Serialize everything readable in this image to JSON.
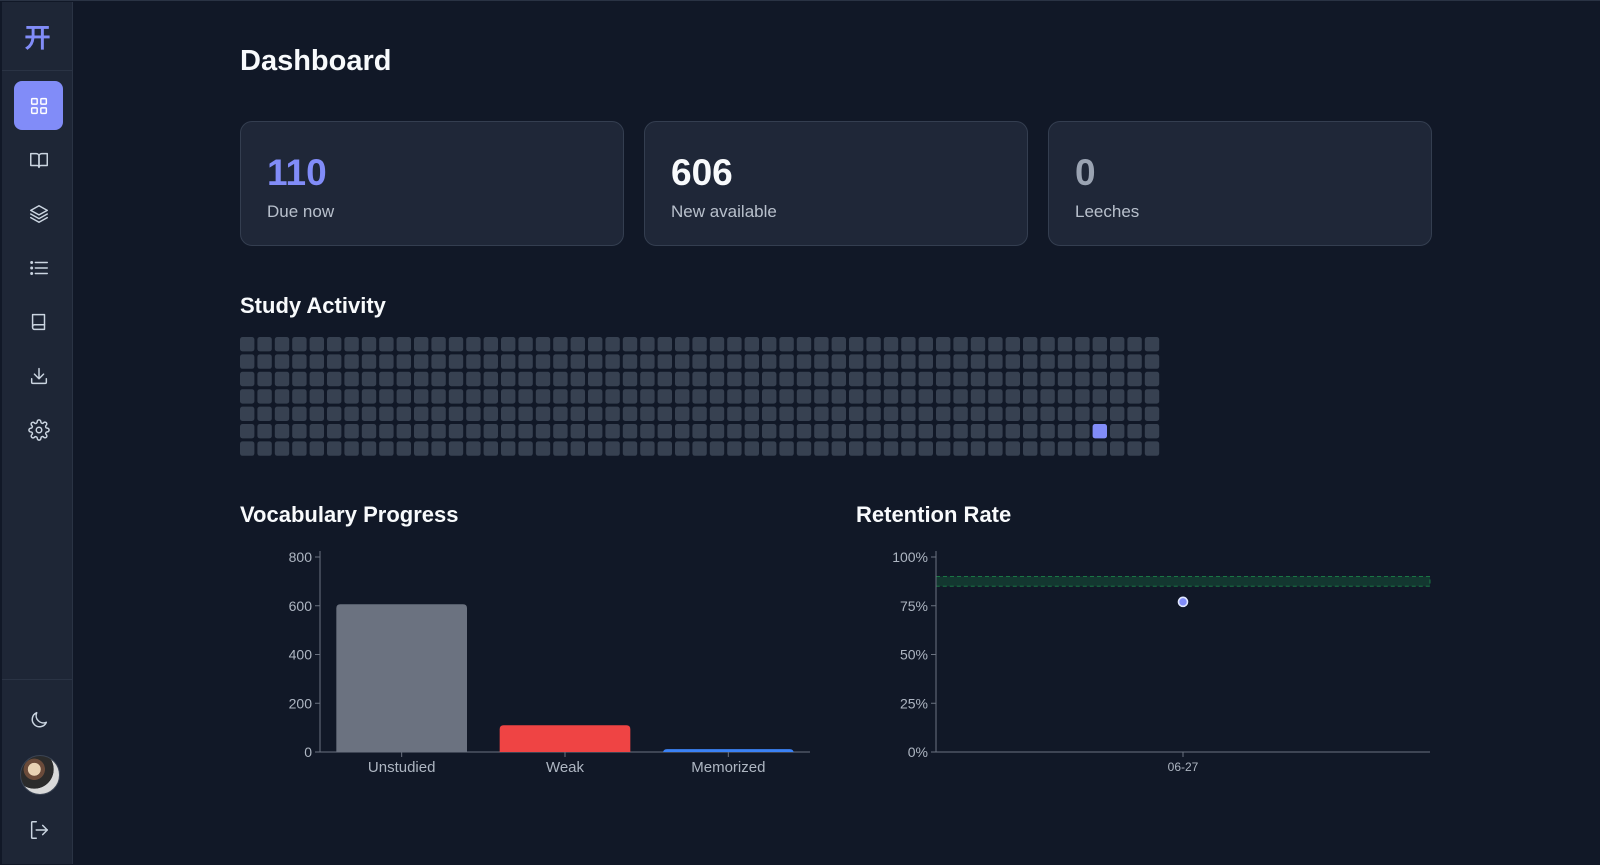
{
  "app": {
    "logo_glyph": "开",
    "accent_color": "#818cf8"
  },
  "sidebar": {
    "nav_items": [
      {
        "icon": "dashboard-grid-icon",
        "active": true
      },
      {
        "icon": "open-book-icon",
        "active": false
      },
      {
        "icon": "layers-icon",
        "active": false
      },
      {
        "icon": "list-icon",
        "active": false
      },
      {
        "icon": "book-icon",
        "active": false
      },
      {
        "icon": "download-icon",
        "active": false
      },
      {
        "icon": "gear-icon",
        "active": false
      }
    ],
    "bottom_items": [
      {
        "icon": "moon-icon"
      },
      {
        "icon": "avatar"
      },
      {
        "icon": "logout-icon"
      }
    ]
  },
  "page": {
    "title": "Dashboard"
  },
  "stats": [
    {
      "value": "110",
      "label": "Due now",
      "color": "#818cf8"
    },
    {
      "value": "606",
      "label": "New available",
      "color": "#f8fafc"
    },
    {
      "value": "0",
      "label": "Leeches",
      "color": "#9aa3b2"
    }
  ],
  "study_activity": {
    "title": "Study Activity",
    "weeks": 53,
    "days_per_week": 7,
    "cell_color": "#374151",
    "active_color": "#818cf8",
    "active_cells": [
      {
        "week": 49,
        "day": 5
      }
    ]
  },
  "vocabulary_progress": {
    "title": "Vocabulary Progress",
    "chart_data": {
      "type": "bar",
      "categories": [
        "Unstudied",
        "Weak",
        "Memorized"
      ],
      "values": [
        606,
        110,
        12
      ],
      "colors": [
        "#6b7280",
        "#ef4444",
        "#3b82f6"
      ],
      "yticks": [
        "0",
        "200",
        "400",
        "600",
        "800"
      ],
      "ylim": [
        0,
        800
      ]
    }
  },
  "retention_rate": {
    "title": "Retention Rate",
    "chart_data": {
      "type": "scatter",
      "x": [
        "06-27"
      ],
      "y": [
        77
      ],
      "yticks": [
        "0%",
        "25%",
        "50%",
        "75%",
        "100%"
      ],
      "ylim": [
        0,
        100
      ],
      "target_band": [
        85,
        90
      ],
      "point_color": "#818cf8",
      "band_color": "#22c55e"
    }
  }
}
